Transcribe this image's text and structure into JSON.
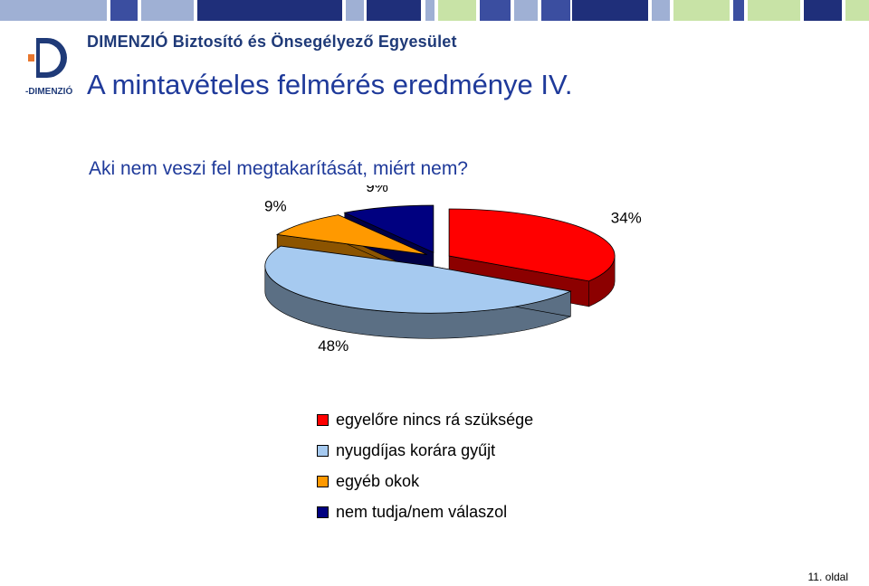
{
  "header": {
    "org_name": "DIMENZIÓ Biztosító és Önsegélyező Egyesület",
    "logo_text": "-DIMENZIÓ",
    "stripe_colors": [
      "#3b4ea0",
      "#9fb0d4",
      "#c8e3a6",
      "#1f2f7a"
    ]
  },
  "slide": {
    "title": "A mintavételes felmérés eredménye IV.",
    "subtitle": "Aki nem veszi fel megtakarítását, miért nem?",
    "page_number": "11. oldal"
  },
  "chart_data": {
    "type": "pie",
    "style": "3d-exploded",
    "title": "",
    "slices": [
      {
        "label": "egyelőre nincs rá szüksége",
        "value": 34,
        "display": "34%",
        "color": "#ff0000"
      },
      {
        "label": "nyugdíjas korára gyűjt",
        "value": 48,
        "display": "48%",
        "color": "#a6caf0"
      },
      {
        "label": "egyéb okok",
        "value": 9,
        "display": "9%",
        "color": "#ff9900"
      },
      {
        "label": "nem tudja/nem válaszol",
        "value": 9,
        "display": "9%",
        "color": "#000080"
      }
    ],
    "legend_position": "bottom"
  }
}
